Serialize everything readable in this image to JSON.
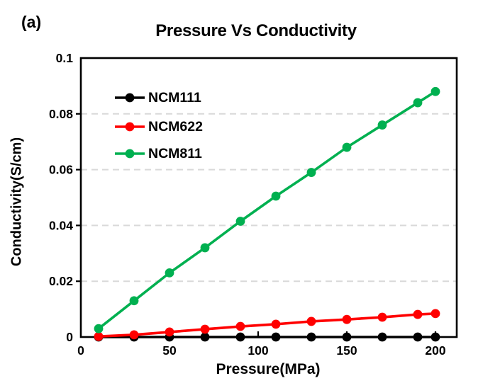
{
  "panel_label": "(a)",
  "chart_data": {
    "type": "line",
    "title": "Pressure Vs Conductivity",
    "xlabel": "Pressure(MPa)",
    "ylabel": "Conductivity(S/cm)",
    "x": [
      10,
      30,
      50,
      70,
      90,
      110,
      130,
      150,
      170,
      190,
      200
    ],
    "series": [
      {
        "name": "NCM111",
        "color": "#000000",
        "values": [
          0,
          0,
          0,
          0,
          0,
          0,
          0,
          0,
          0,
          0,
          0
        ]
      },
      {
        "name": "NCM622",
        "color": "#ff0000",
        "values": [
          0.0002,
          0.0008,
          0.0018,
          0.0028,
          0.0038,
          0.0046,
          0.0056,
          0.0063,
          0.0071,
          0.0081,
          0.0084
        ]
      },
      {
        "name": "NCM811",
        "color": "#00b050",
        "values": [
          0.003,
          0.013,
          0.023,
          0.032,
          0.0415,
          0.0505,
          0.059,
          0.068,
          0.076,
          0.084,
          0.088
        ]
      }
    ],
    "xlim": [
      0,
      212
    ],
    "ylim": [
      0,
      0.1
    ],
    "x_ticks": [
      0,
      50,
      100,
      150,
      200
    ],
    "x_tick_labels": [
      "0",
      "50",
      "100",
      "150",
      "200"
    ],
    "y_ticks": [
      0,
      0.02,
      0.04,
      0.06,
      0.08,
      0.1
    ],
    "y_tick_labels": [
      "0",
      "0.02",
      "0.04",
      "0.06",
      "0.08",
      "0.1"
    ],
    "grid": "horizontal-dashed",
    "gridline_color": "#d9d9d9",
    "legend_position": "inside-top-left"
  }
}
